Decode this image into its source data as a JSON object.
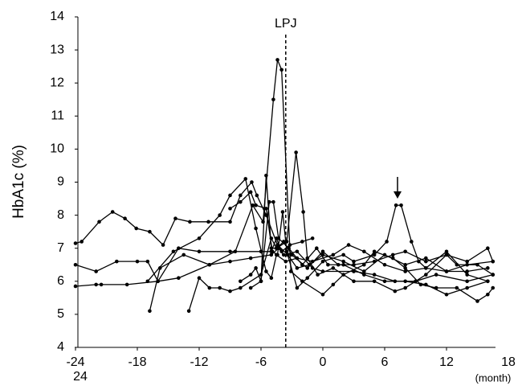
{
  "chart_data": {
    "type": "line",
    "y_label": "HbA1c (%)",
    "x_label": "(month)",
    "annotations": [
      "24"
    ],
    "reference_line": {
      "x": -3.6,
      "label": "LPJ"
    },
    "xlim": [
      -24,
      18
    ],
    "xticks": [
      -24,
      -18,
      -12,
      -6,
      0,
      6,
      12,
      18
    ],
    "ylim": [
      4,
      14
    ],
    "yticks": [
      4,
      5,
      6,
      7,
      8,
      9,
      10,
      11,
      12,
      13,
      14
    ],
    "series": [
      {
        "color": "#000000",
        "x": [
          -24,
          -23.4,
          -21.7,
          -20.4,
          -19.2,
          -18.1,
          -16.8,
          -15.5,
          -14.3,
          -12.9,
          -11.1,
          -9,
          -8,
          -6.9,
          -6.4,
          -5.5,
          -4.4,
          -3.4,
          -2.5,
          -1.3,
          0,
          2,
          4,
          6,
          8,
          10,
          12,
          14,
          16.5
        ],
        "values": [
          7.15,
          7.2,
          7.8,
          8.1,
          7.9,
          7.6,
          7.5,
          7.1,
          7.9,
          7.8,
          7.8,
          7.8,
          8.6,
          9.0,
          8.6,
          8.0,
          7.1,
          6.8,
          6.4,
          6.5,
          6.8,
          6.6,
          6.3,
          6.8,
          6.5,
          6.7,
          6.3,
          6.5,
          6.6
        ]
      },
      {
        "color": "#000000",
        "x": [
          -24,
          -22,
          -20,
          -18,
          -17,
          -16,
          -14,
          -12,
          -9,
          -6,
          -5,
          -4.5,
          -4,
          -3.2,
          -2,
          -1
        ],
        "values": [
          6.5,
          6.3,
          6.6,
          6.6,
          6.6,
          6.0,
          7.0,
          6.9,
          6.9,
          6.9,
          6.9,
          7.3,
          6.9,
          7.1,
          7.2,
          7.3
        ]
      },
      {
        "color": "#000000",
        "x": [
          -24,
          -22,
          -21.5,
          -19,
          -16,
          -14,
          -11,
          -9,
          -7,
          -5,
          -4.3,
          -3.8,
          -2.5,
          -1,
          0,
          3,
          5,
          7,
          9,
          11,
          14,
          16.5
        ],
        "values": [
          5.85,
          5.9,
          5.9,
          5.9,
          6.0,
          6.1,
          6.5,
          6.6,
          6.7,
          6.8,
          7.0,
          6.8,
          6.9,
          6.4,
          6.3,
          6.3,
          6.2,
          6.0,
          6.0,
          6.2,
          6.0,
          6.2
        ]
      },
      {
        "color": "#000000",
        "x": [
          -16.8,
          -15.8,
          -13.5,
          -11,
          -8.5,
          -6.8,
          -5.8,
          -4.8,
          -4.4,
          -4.0,
          -3.1,
          -2,
          0,
          1,
          2,
          4,
          5,
          6.8,
          8,
          9.5,
          11,
          13,
          15,
          16,
          16.5
        ],
        "values": [
          5.1,
          6.4,
          6.8,
          6.5,
          6.9,
          8.3,
          7.8,
          11.5,
          12.7,
          12.4,
          6.3,
          6.0,
          5.6,
          5.9,
          6.2,
          6.5,
          6.9,
          6.7,
          6.4,
          5.9,
          5.8,
          5.8,
          5.4,
          5.6,
          5.8
        ]
      },
      {
        "color": "#000000",
        "x": [
          -13,
          -12,
          -11,
          -10,
          -9,
          -8,
          -6,
          -5,
          -4.5,
          -3.5,
          -2.6,
          -1.9,
          -1.5,
          -0.5,
          1,
          3,
          5,
          7,
          8,
          10,
          12,
          13,
          15,
          16.5
        ],
        "values": [
          5.1,
          6.1,
          5.8,
          5.8,
          5.7,
          5.8,
          6.2,
          7.3,
          7.0,
          7.2,
          9.9,
          8.1,
          6.7,
          6.2,
          6.4,
          6.0,
          6.0,
          5.7,
          5.8,
          6.2,
          6.8,
          6.5,
          6.5,
          6.2
        ]
      },
      {
        "color": "#000000",
        "x": [
          -9,
          -8,
          -7,
          -6.5,
          -5.5,
          -4.9,
          -4.4,
          -3.9,
          -3.5,
          -2.5,
          -1.5,
          0,
          2,
          3,
          5,
          6.2,
          7.1,
          7.6,
          8.6,
          9.3,
          10,
          12,
          14,
          16
        ],
        "values": [
          8.2,
          8.4,
          8.7,
          8.3,
          8.2,
          6.9,
          6.8,
          8.1,
          6.9,
          5.8,
          6.1,
          6.6,
          6.8,
          6.6,
          6.8,
          7.2,
          8.3,
          8.3,
          7.2,
          6.6,
          6.4,
          6.9,
          6.2,
          6.0
        ]
      },
      {
        "color": "#000000",
        "x": [
          -17,
          -14.5,
          -12,
          -10,
          -9,
          -7.5,
          -6.5,
          -5.5,
          -5,
          -4.5,
          -3.6,
          -2.5,
          -1,
          1,
          2.5,
          4,
          6,
          8,
          10,
          12,
          14,
          16
        ],
        "values": [
          6.0,
          6.9,
          7.3,
          8.0,
          8.6,
          9.1,
          7.6,
          6.3,
          6.1,
          6.8,
          6.6,
          6.7,
          6.6,
          6.8,
          7.1,
          6.9,
          6.5,
          6.3,
          6.4,
          6.3,
          6.3,
          6.4
        ]
      },
      {
        "color": "#000000",
        "x": [
          -8,
          -7,
          -6.5,
          -6,
          -5.2,
          -4.8,
          -4.3,
          -3.3,
          -2,
          -0.6,
          0.5,
          2,
          4,
          6,
          8,
          10,
          12,
          14,
          16
        ],
        "values": [
          6.0,
          6.2,
          6.4,
          6.0,
          8.4,
          8.4,
          7.3,
          7.0,
          6.5,
          7.0,
          6.5,
          6.5,
          6.2,
          6.0,
          6.0,
          5.9,
          5.6,
          5.8,
          6.0
        ]
      },
      {
        "color": "#000000",
        "x": [
          -7,
          -6,
          -5.5,
          -5.0,
          -4.5,
          -3.8,
          -3,
          -1.5,
          0,
          1.5,
          3,
          5,
          6.8,
          8,
          10,
          12,
          14,
          16,
          16.5
        ],
        "values": [
          5.8,
          6.0,
          9.2,
          7.0,
          7.0,
          7.2,
          6.8,
          6.4,
          6.9,
          6.5,
          6.5,
          6.6,
          6.8,
          6.9,
          6.6,
          6.8,
          6.6,
          7.0,
          6.6
        ]
      }
    ]
  }
}
